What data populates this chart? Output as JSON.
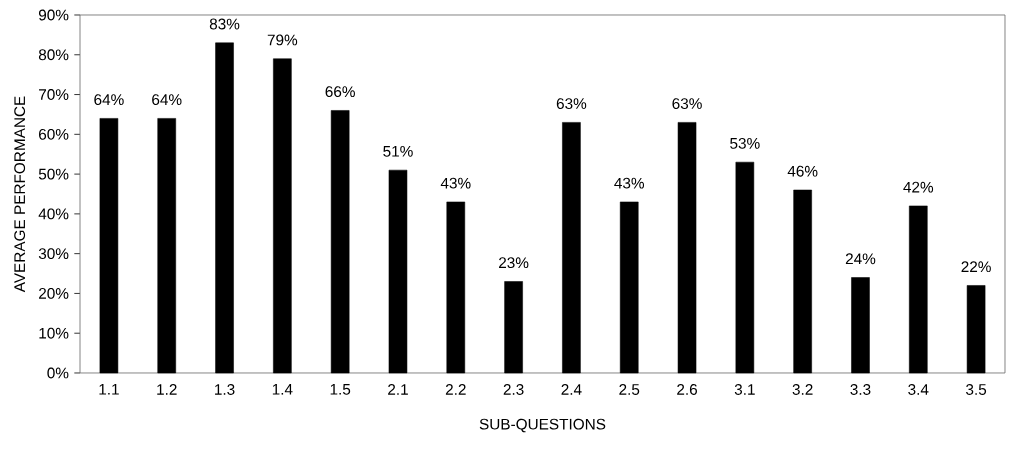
{
  "chart_data": {
    "type": "bar",
    "xlabel": "SUB-QUESTIONS",
    "ylabel": "AVERAGE PERFORMANCE",
    "categories": [
      "1.1",
      "1.2",
      "1.3",
      "1.4",
      "1.5",
      "2.1",
      "2.2",
      "2.3",
      "2.4",
      "2.5",
      "2.6",
      "3.1",
      "3.2",
      "3.3",
      "3.4",
      "3.5"
    ],
    "values": [
      64,
      64,
      83,
      79,
      66,
      51,
      43,
      23,
      63,
      43,
      63,
      53,
      46,
      24,
      42,
      22
    ],
    "value_labels": [
      "64%",
      "64%",
      "83%",
      "79%",
      "66%",
      "51%",
      "43%",
      "23%",
      "63%",
      "43%",
      "63%",
      "53%",
      "46%",
      "24%",
      "42%",
      "22%"
    ],
    "color": "#000000",
    "ylim": [
      0,
      90
    ],
    "yticks": [
      {
        "value": 0,
        "label": "0%"
      },
      {
        "value": 10,
        "label": "10%"
      },
      {
        "value": 20,
        "label": "20%"
      },
      {
        "value": 30,
        "label": "30%"
      },
      {
        "value": 40,
        "label": "40%"
      },
      {
        "value": 50,
        "label": "50%"
      },
      {
        "value": 60,
        "label": "60%"
      },
      {
        "value": 70,
        "label": "70%"
      },
      {
        "value": 80,
        "label": "80%"
      },
      {
        "value": 90,
        "label": "90%"
      }
    ],
    "grid": false
  }
}
